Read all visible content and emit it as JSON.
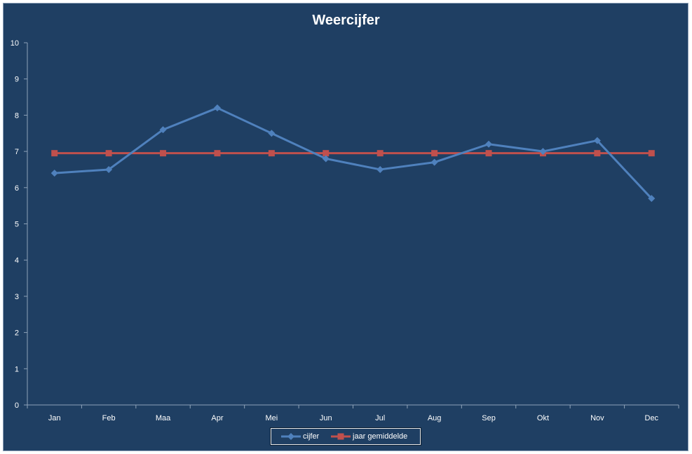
{
  "chart_data": {
    "type": "line",
    "title": "Weercijfer",
    "xlabel": "",
    "ylabel": "",
    "categories": [
      "Jan",
      "Feb",
      "Maa",
      "Apr",
      "Mei",
      "Jun",
      "Jul",
      "Aug",
      "Sep",
      "Okt",
      "Nov",
      "Dec"
    ],
    "ylim": [
      0,
      10
    ],
    "yticks": [
      0,
      1,
      2,
      3,
      4,
      5,
      6,
      7,
      8,
      9,
      10
    ],
    "grid": false,
    "legend_position": "bottom",
    "series": [
      {
        "name": "cijfer",
        "color": "#4f81bd",
        "marker": "diamond",
        "values": [
          6.4,
          6.5,
          7.6,
          8.2,
          7.5,
          6.8,
          6.5,
          6.7,
          7.2,
          7.0,
          7.3,
          5.7
        ]
      },
      {
        "name": "jaar gemiddelde",
        "color": "#c0504d",
        "marker": "square",
        "values": [
          6.95,
          6.95,
          6.95,
          6.95,
          6.95,
          6.95,
          6.95,
          6.95,
          6.95,
          6.95,
          6.95,
          6.95
        ]
      }
    ]
  },
  "colors": {
    "background": "#1f3f63",
    "axis": "#8ea2b8",
    "text": "#ffffff"
  }
}
